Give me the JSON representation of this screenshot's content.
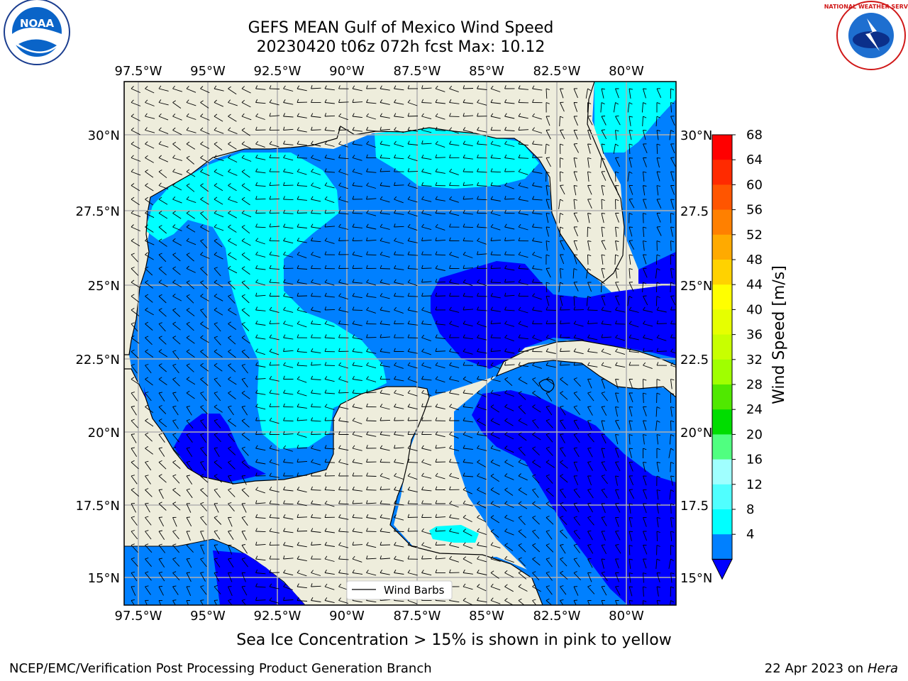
{
  "header": {
    "title_line1": "GEFS MEAN Gulf of Mexico Wind Speed",
    "title_line2": "20230420 t06z 072h fcst   Max: 10.12"
  },
  "logos": {
    "left": "NOAA",
    "right": "NATIONAL WEATHER SERVICE"
  },
  "map": {
    "lon_ticks": [
      "97.5°W",
      "95°W",
      "92.5°W",
      "90°W",
      "87.5°W",
      "85°W",
      "82.5°W",
      "80°W"
    ],
    "lat_ticks": [
      "30°N",
      "27.5°N",
      "25°N",
      "22.5°N",
      "20°N",
      "17.5°N",
      "15°N"
    ],
    "lat_ticks_right": [
      "30°N",
      "27.5",
      "25°N",
      "22.5",
      "20°N",
      "17.5",
      "15°N"
    ],
    "legend_label": "Wind Barbs",
    "land_color": "#eeeddc",
    "grid_color": "#b0b0b0"
  },
  "colorbar": {
    "label": "Wind Speed [m/s]",
    "ticks": [
      "68",
      "64",
      "60",
      "56",
      "52",
      "48",
      "44",
      "40",
      "36",
      "32",
      "28",
      "24",
      "20",
      "16",
      "12",
      "8",
      "4"
    ],
    "colors": [
      "#ff0000",
      "#ff2a00",
      "#ff5500",
      "#ff8000",
      "#ffaa00",
      "#ffd200",
      "#ffff00",
      "#e6ff00",
      "#c8ff00",
      "#a0ff00",
      "#50e800",
      "#00dd00",
      "#50ff80",
      "#a0ffff",
      "#50ffff",
      "#00ffff",
      "#0080ff",
      "#0000ff"
    ]
  },
  "note": "Sea Ice Concentration > 15% is shown in pink to yellow",
  "footer": {
    "left": "NCEP/EMC/Verification Post Processing Product Generation Branch",
    "right_date": "22 Apr 2023 on ",
    "right_host": "Hera"
  }
}
